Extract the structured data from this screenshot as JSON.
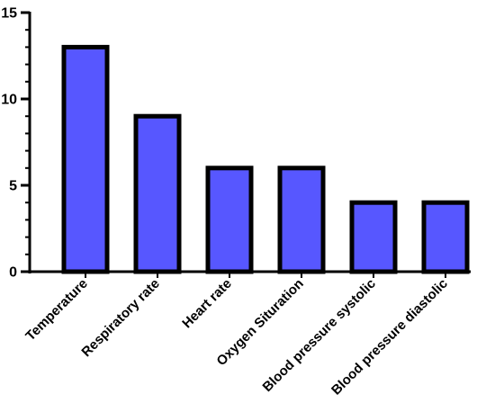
{
  "chart_data": {
    "type": "bar",
    "title": "",
    "xlabel": "",
    "ylabel": "",
    "categories": [
      "Temperature",
      "Respiratory rate",
      "Heart rate",
      "Oxygen Situration",
      "Blood pressure systolic",
      "Blood pressure diastolic"
    ],
    "values": [
      13,
      9,
      6,
      6,
      4,
      4
    ],
    "ylim": [
      0,
      15
    ],
    "yticks": [
      0,
      5,
      10,
      15
    ],
    "minor_ticks_per_major": 5,
    "grid": false,
    "legend": "none",
    "colors": {
      "bar_fill": "#5757ff",
      "bar_edge": "#000000",
      "axis": "#000000"
    }
  }
}
